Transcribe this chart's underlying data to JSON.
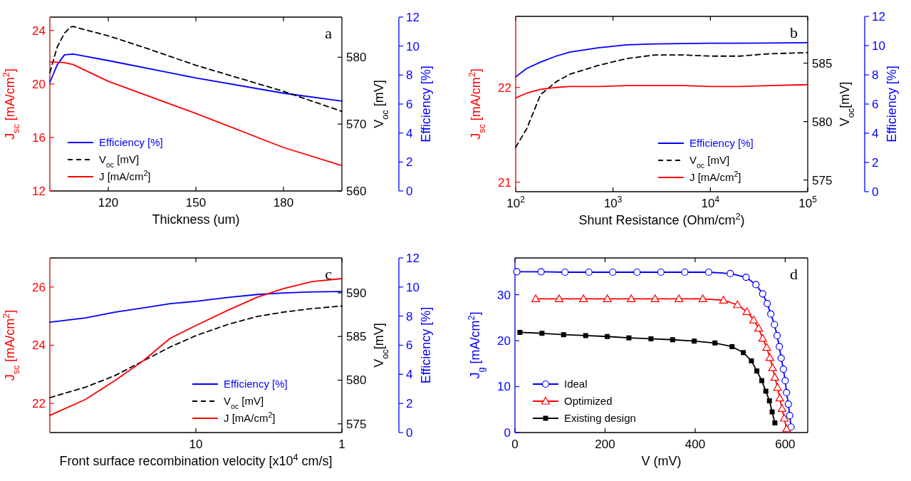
{
  "chart_data": [
    {
      "type": "line",
      "xlabel": "Thickness (um)",
      "ylabel": "J$_{sc}$ [mA/cm$^{2}$]",
      "y2label": "V$_{oc}$ [mV]",
      "y3label": "Efficiency [%]",
      "annotations": [
        "a"
      ],
      "xlim": [
        100,
        200
      ],
      "xticks": [
        120,
        150,
        180
      ],
      "ylim": [
        12,
        25
      ],
      "yticks": [
        12,
        16,
        20,
        24
      ],
      "y2lim": [
        560,
        586
      ],
      "y2ticks": [
        560,
        570,
        580
      ],
      "y3lim": [
        0,
        12
      ],
      "y3ticks": [
        0,
        2,
        4,
        6,
        8,
        10,
        12
      ],
      "legend": "bottom left",
      "series": [
        {
          "name": "Efficiency [%]",
          "color": "#0000ff",
          "axis": "y3",
          "x": [
            100,
            102.5,
            105,
            108,
            112,
            120,
            150,
            180,
            200
          ],
          "values": [
            7.5,
            8.7,
            9.4,
            9.45,
            9.3,
            9.0,
            7.8,
            6.75,
            6.2
          ]
        },
        {
          "name": "V$_{oc}$ [mV]",
          "color": "#000000",
          "axis": "y2",
          "line_style": "dashed",
          "x": [
            100,
            102.5,
            105,
            107,
            108,
            112,
            120,
            132,
            150,
            180,
            200
          ],
          "values": [
            577.7,
            581.5,
            583.6,
            584.5,
            584.6,
            584.1,
            583.2,
            581.5,
            578.8,
            574.9,
            571.9
          ]
        },
        {
          "name": "J [mA/cm$^{2}$]",
          "color": "#ff0000",
          "x": [
            100,
            105,
            108,
            120,
            150,
            180,
            200
          ],
          "values": [
            21.65,
            21.6,
            21.45,
            20.2,
            17.8,
            15.25,
            13.9
          ]
        }
      ]
    },
    {
      "type": "line",
      "xlabel": "Shunt Resistance (Ohm/cm$^{2}$)",
      "ylabel": "J$_{sc}$ [mA/cm$^{2}$]",
      "y2label": "V$_{oc}$[mV]",
      "y3label": "Efficiency [%]",
      "annotations": [
        "b"
      ],
      "log": "x",
      "xlim": [
        100,
        100000
      ],
      "xticks": [
        {
          "value": 100,
          "label": "10$^{2}$"
        },
        {
          "value": 1000,
          "label": "10$^{3}$"
        },
        {
          "value": 10000,
          "label": "10$^{4}$"
        },
        {
          "value": 100000,
          "label": "10$^{5}$"
        }
      ],
      "ylim": [
        20.9,
        22.75
      ],
      "yticks": [
        21,
        22
      ],
      "y2lim": [
        574,
        589
      ],
      "y2ticks": [
        575,
        580,
        585
      ],
      "y3lim": [
        0,
        12
      ],
      "y3ticks": [
        0,
        2,
        4,
        6,
        8,
        10,
        12
      ],
      "legend": "bottom right",
      "series": [
        {
          "name": "Efficiency [%]",
          "color": "#0000ff",
          "axis": "y3",
          "x": [
            100,
            130,
            180,
            260,
            360,
            700,
            1400,
            2700,
            5300,
            10000,
            20000,
            40000,
            100000
          ],
          "values": [
            7.86,
            8.44,
            8.87,
            9.28,
            9.56,
            9.85,
            10.05,
            10.12,
            10.14,
            10.16,
            10.16,
            10.18,
            10.2
          ]
        },
        {
          "name": "V$_{oc}$ [mV]",
          "color": "#000000",
          "axis": "y2",
          "line_style": "dashed",
          "x": [
            100,
            130,
            180,
            260,
            360,
            700,
            1400,
            2700,
            5300,
            10000,
            20000,
            40000,
            100000
          ],
          "values": [
            577.8,
            579.4,
            582.3,
            583.4,
            584.05,
            584.8,
            585.4,
            585.7,
            585.7,
            585.6,
            585.6,
            585.8,
            585.9
          ]
        },
        {
          "name": "J [mA/cm$^{2}$]",
          "color": "#ff0000",
          "x": [
            100,
            130,
            180,
            260,
            360,
            700,
            1400,
            2700,
            5300,
            10000,
            20000,
            40000,
            100000
          ],
          "values": [
            21.89,
            21.94,
            21.98,
            22.0,
            22.01,
            22.01,
            22.02,
            22.02,
            22.02,
            22.01,
            22.01,
            22.02,
            22.03
          ]
        }
      ]
    },
    {
      "type": "line",
      "xlabel": "Front surface recombination velocity [x10$^{4}$ cm/s]",
      "ylabel": "J$_{sc}$ [mA/cm$^{2}$]",
      "y2label": "V$_{oc}$[mV]",
      "y3label": "Efficiency [%]",
      "annotations": [
        "c"
      ],
      "log": "x",
      "xlim": [
        100,
        1
      ],
      "xticks": [
        10,
        1
      ],
      "ylim": [
        21,
        27
      ],
      "yticks": [
        22,
        24,
        26
      ],
      "y2lim": [
        574,
        594
      ],
      "y2ticks": [
        575,
        580,
        585,
        590
      ],
      "y3lim": [
        0,
        12
      ],
      "y3ticks": [
        0,
        2,
        4,
        6,
        8,
        10,
        12
      ],
      "legend": "bottom right",
      "series": [
        {
          "name": "Efficiency [%]",
          "color": "#0000ff",
          "axis": "y3",
          "x": [
            100,
            57,
            36,
            23,
            15,
            10,
            6,
            3.8,
            2.5,
            1.6,
            1
          ],
          "values": [
            7.59,
            7.88,
            8.27,
            8.57,
            8.86,
            9.02,
            9.29,
            9.49,
            9.59,
            9.67,
            9.69
          ]
        },
        {
          "name": "V$_{oc}$ [mV]",
          "color": "#000000",
          "axis": "y2",
          "line_style": "dashed",
          "x": [
            100,
            57,
            36,
            23,
            15,
            10,
            6,
            3.8,
            2.5,
            1.6,
            1
          ],
          "values": [
            578.0,
            579.2,
            580.5,
            582.2,
            583.8,
            585.1,
            586.4,
            587.3,
            587.8,
            588.2,
            588.5
          ]
        },
        {
          "name": "J [mA/cm$^{2}$]",
          "color": "#ff0000",
          "x": [
            100,
            57,
            36,
            23,
            15,
            10,
            6,
            3.8,
            2.5,
            1.6,
            1
          ],
          "values": [
            21.59,
            22.14,
            22.78,
            23.46,
            24.24,
            24.68,
            25.21,
            25.65,
            25.95,
            26.19,
            26.29
          ]
        }
      ]
    },
    {
      "type": "line",
      "xlabel": "V (mV)",
      "ylabel": "J$_{g}$ [mA/cm$^{2}$]",
      "annotations": [
        "d"
      ],
      "xlim": [
        0,
        650
      ],
      "xticks": [
        0,
        200,
        400,
        600
      ],
      "ylim": [
        0,
        38
      ],
      "yticks": [
        0,
        10,
        20,
        30
      ],
      "legend": "bottom left",
      "series": [
        {
          "name": "Ideal",
          "color": "#0000ff",
          "marker": "circle",
          "x": [
            4,
            58,
            111,
            164,
            217,
            271,
            324,
            377,
            430,
            478,
            513,
            535,
            550,
            560,
            568,
            576,
            582,
            587,
            591,
            596,
            600,
            603,
            607,
            610,
            613
          ],
          "values": [
            35.0,
            35.0,
            34.9,
            34.9,
            34.9,
            34.9,
            34.9,
            34.9,
            34.9,
            34.6,
            33.8,
            32.2,
            30.2,
            28.1,
            25.8,
            23.5,
            21.1,
            18.7,
            16.2,
            13.8,
            11.3,
            8.7,
            6.2,
            3.7,
            1.2
          ]
        },
        {
          "name": "Optimized",
          "color": "#ff0000",
          "marker": "triangle",
          "x": [
            46,
            98,
            152,
            205,
            258,
            311,
            364,
            417,
            463,
            494,
            515,
            530,
            541,
            550,
            559,
            566,
            572,
            577,
            583,
            588,
            593,
            598,
            603
          ],
          "values": [
            29.1,
            29.1,
            29.1,
            29.1,
            29.1,
            29.1,
            29.1,
            29.1,
            28.8,
            27.8,
            26.3,
            24.5,
            22.7,
            20.5,
            18.5,
            16.3,
            14.1,
            12.0,
            9.8,
            7.5,
            5.2,
            3.1,
            0.8
          ]
        },
        {
          "name": "Existing design",
          "color": "#000000",
          "marker": "square",
          "x": [
            11,
            60,
            108,
            157,
            205,
            253,
            302,
            350,
            398,
            444,
            482,
            507,
            525,
            537,
            548,
            557,
            565,
            571,
            577
          ],
          "values": [
            21.8,
            21.6,
            21.3,
            21.1,
            20.9,
            20.6,
            20.4,
            20.2,
            19.9,
            19.5,
            18.7,
            17.4,
            15.6,
            13.4,
            11.3,
            9.0,
            6.9,
            4.5,
            2.1
          ]
        }
      ]
    }
  ]
}
